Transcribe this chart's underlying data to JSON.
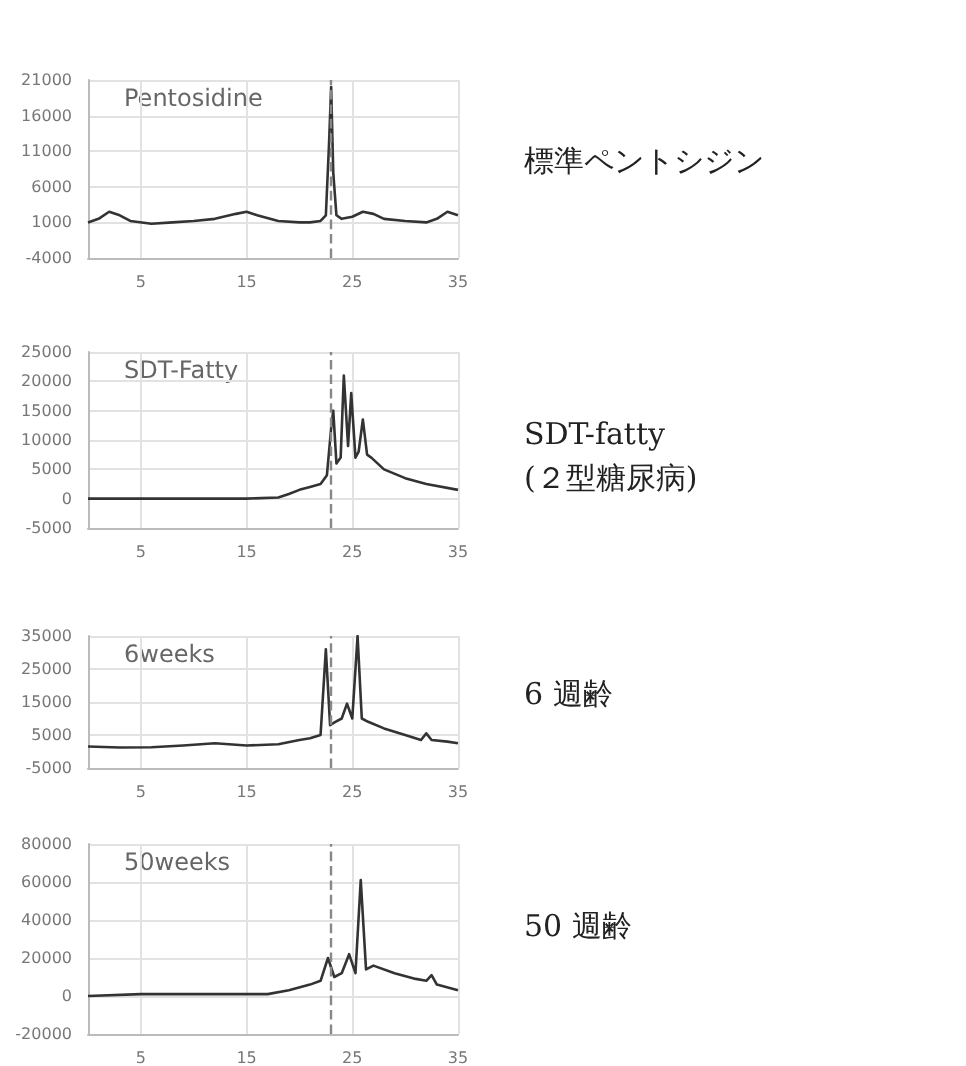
{
  "chart_data": [
    {
      "type": "line",
      "title": "Pentosidine",
      "annotations": [
        "標準ペントシジン"
      ],
      "x": [
        0,
        1,
        2,
        3,
        4,
        6,
        8,
        10,
        12,
        14,
        15,
        16,
        18,
        20,
        21,
        22,
        22.5,
        22.8,
        23,
        23.2,
        23.5,
        24,
        25,
        26,
        27,
        28,
        30,
        32,
        33,
        34,
        35
      ],
      "series": [
        {
          "color": "#333333",
          "values": [
            1000,
            1500,
            2500,
            2000,
            1200,
            800,
            1000,
            1200,
            1500,
            2200,
            2500,
            2000,
            1200,
            1000,
            1000,
            1200,
            2000,
            12000,
            20000,
            8000,
            2000,
            1500,
            1800,
            2500,
            2200,
            1500,
            1200,
            1000,
            1500,
            2500,
            2000
          ]
        }
      ],
      "xlim": [
        0,
        35
      ],
      "xticks": [
        5,
        15,
        25,
        35
      ],
      "ylim": [
        -4000,
        21000
      ],
      "yticks": [
        -4000,
        1000,
        6000,
        11000,
        16000,
        21000
      ],
      "grid": true,
      "marker": "none",
      "line_style": "solid",
      "ref_lines": [
        {
          "axis": "x",
          "value": 23,
          "color": "#888888",
          "line_style": "dashed"
        }
      ]
    },
    {
      "type": "line",
      "title": "SDT-Fatty",
      "annotations": [
        "SDT-fatty\n(２型糖尿病)"
      ],
      "x": [
        0,
        5,
        10,
        15,
        18,
        19,
        20,
        21,
        22,
        22.6,
        23,
        23.2,
        23.5,
        23.9,
        24.2,
        24.6,
        24.9,
        25.3,
        25.6,
        26,
        26.4,
        26.8,
        28,
        30,
        32,
        35
      ],
      "series": [
        {
          "color": "#333333",
          "values": [
            0,
            0,
            0,
            0,
            200,
            800,
            1500,
            2000,
            2500,
            4000,
            12000,
            15000,
            6000,
            7000,
            21000,
            9000,
            18000,
            7000,
            8000,
            13500,
            7500,
            7000,
            5000,
            3500,
            2500,
            1500
          ]
        }
      ],
      "xlim": [
        0,
        35
      ],
      "xticks": [
        5,
        15,
        25,
        35
      ],
      "ylim": [
        -5000,
        25000
      ],
      "yticks": [
        -5000,
        0,
        5000,
        10000,
        15000,
        20000,
        25000
      ],
      "grid": true,
      "marker": "none",
      "line_style": "solid",
      "ref_lines": [
        {
          "axis": "x",
          "value": 23,
          "color": "#888888",
          "line_style": "dashed"
        }
      ]
    },
    {
      "type": "line",
      "title": "6weeks",
      "annotations": [
        "6 週齢"
      ],
      "x": [
        0,
        3,
        6,
        9,
        12,
        15,
        18,
        20,
        21,
        22,
        22.5,
        22.9,
        23.4,
        24,
        24.5,
        25,
        25.5,
        25.9,
        26.5,
        28,
        30,
        31.5,
        32,
        32.5,
        34,
        35
      ],
      "series": [
        {
          "color": "#333333",
          "values": [
            1500,
            1200,
            1300,
            1800,
            2500,
            1800,
            2200,
            3500,
            4000,
            5000,
            31000,
            8000,
            9000,
            10000,
            14500,
            10000,
            35000,
            10000,
            9000,
            7000,
            5000,
            3500,
            5500,
            3500,
            3000,
            2500
          ]
        }
      ],
      "xlim": [
        0,
        35
      ],
      "xticks": [
        5,
        15,
        25,
        35
      ],
      "ylim": [
        -5000,
        35000
      ],
      "yticks": [
        -5000,
        5000,
        15000,
        25000,
        35000
      ],
      "grid": true,
      "marker": "none",
      "line_style": "solid",
      "ref_lines": [
        {
          "axis": "x",
          "value": 23,
          "color": "#888888",
          "line_style": "dashed"
        }
      ]
    },
    {
      "type": "line",
      "title": "50weeks",
      "annotations": [
        "50 週齢"
      ],
      "x": [
        0,
        5,
        10,
        15,
        17,
        19,
        21,
        22,
        22.7,
        23.3,
        24,
        24.7,
        25.3,
        25.8,
        26.3,
        27,
        29,
        31,
        32,
        32.5,
        33,
        35
      ],
      "series": [
        {
          "color": "#333333",
          "values": [
            0,
            1000,
            1000,
            1000,
            1000,
            3000,
            6000,
            8000,
            20000,
            10000,
            12000,
            22000,
            12000,
            61000,
            14000,
            16000,
            12000,
            9000,
            8000,
            11000,
            6000,
            3000
          ]
        }
      ],
      "xlim": [
        0,
        35
      ],
      "xticks": [
        5,
        15,
        25,
        35
      ],
      "ylim": [
        -20000,
        80000
      ],
      "yticks": [
        -20000,
        0,
        20000,
        40000,
        60000,
        80000
      ],
      "grid": true,
      "marker": "none",
      "line_style": "solid",
      "ref_lines": [
        {
          "axis": "x",
          "value": 23,
          "color": "#888888",
          "line_style": "dashed"
        }
      ]
    }
  ]
}
